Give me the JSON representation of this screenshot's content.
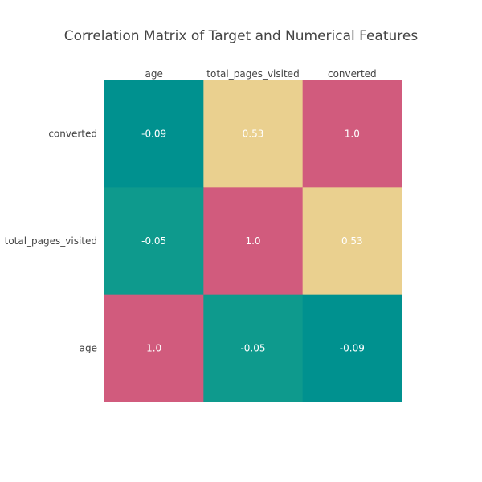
{
  "chart_data": {
    "type": "heatmap",
    "title": "Correlation Matrix of Target and Numerical Features",
    "x": [
      "age",
      "total_pages_visited",
      "converted"
    ],
    "y": [
      "converted",
      "total_pages_visited",
      "age"
    ],
    "values": [
      [
        -0.09,
        0.53,
        1.0
      ],
      [
        -0.05,
        1.0,
        0.53
      ],
      [
        1.0,
        -0.05,
        -0.09
      ]
    ],
    "labels": [
      [
        "-0.09",
        "0.53",
        "1.0"
      ],
      [
        "-0.05",
        "1.0",
        "0.53"
      ],
      [
        "1.0",
        "-0.05",
        "-0.09"
      ]
    ],
    "colorscale": [
      {
        "value": -0.09,
        "color": "#00918f"
      },
      {
        "value": -0.05,
        "color": "#0e9a8d"
      },
      {
        "value": 0.53,
        "color": "#ead08f"
      },
      {
        "value": 1.0,
        "color": "#d15b7d"
      }
    ],
    "x_axis_position": "top"
  }
}
